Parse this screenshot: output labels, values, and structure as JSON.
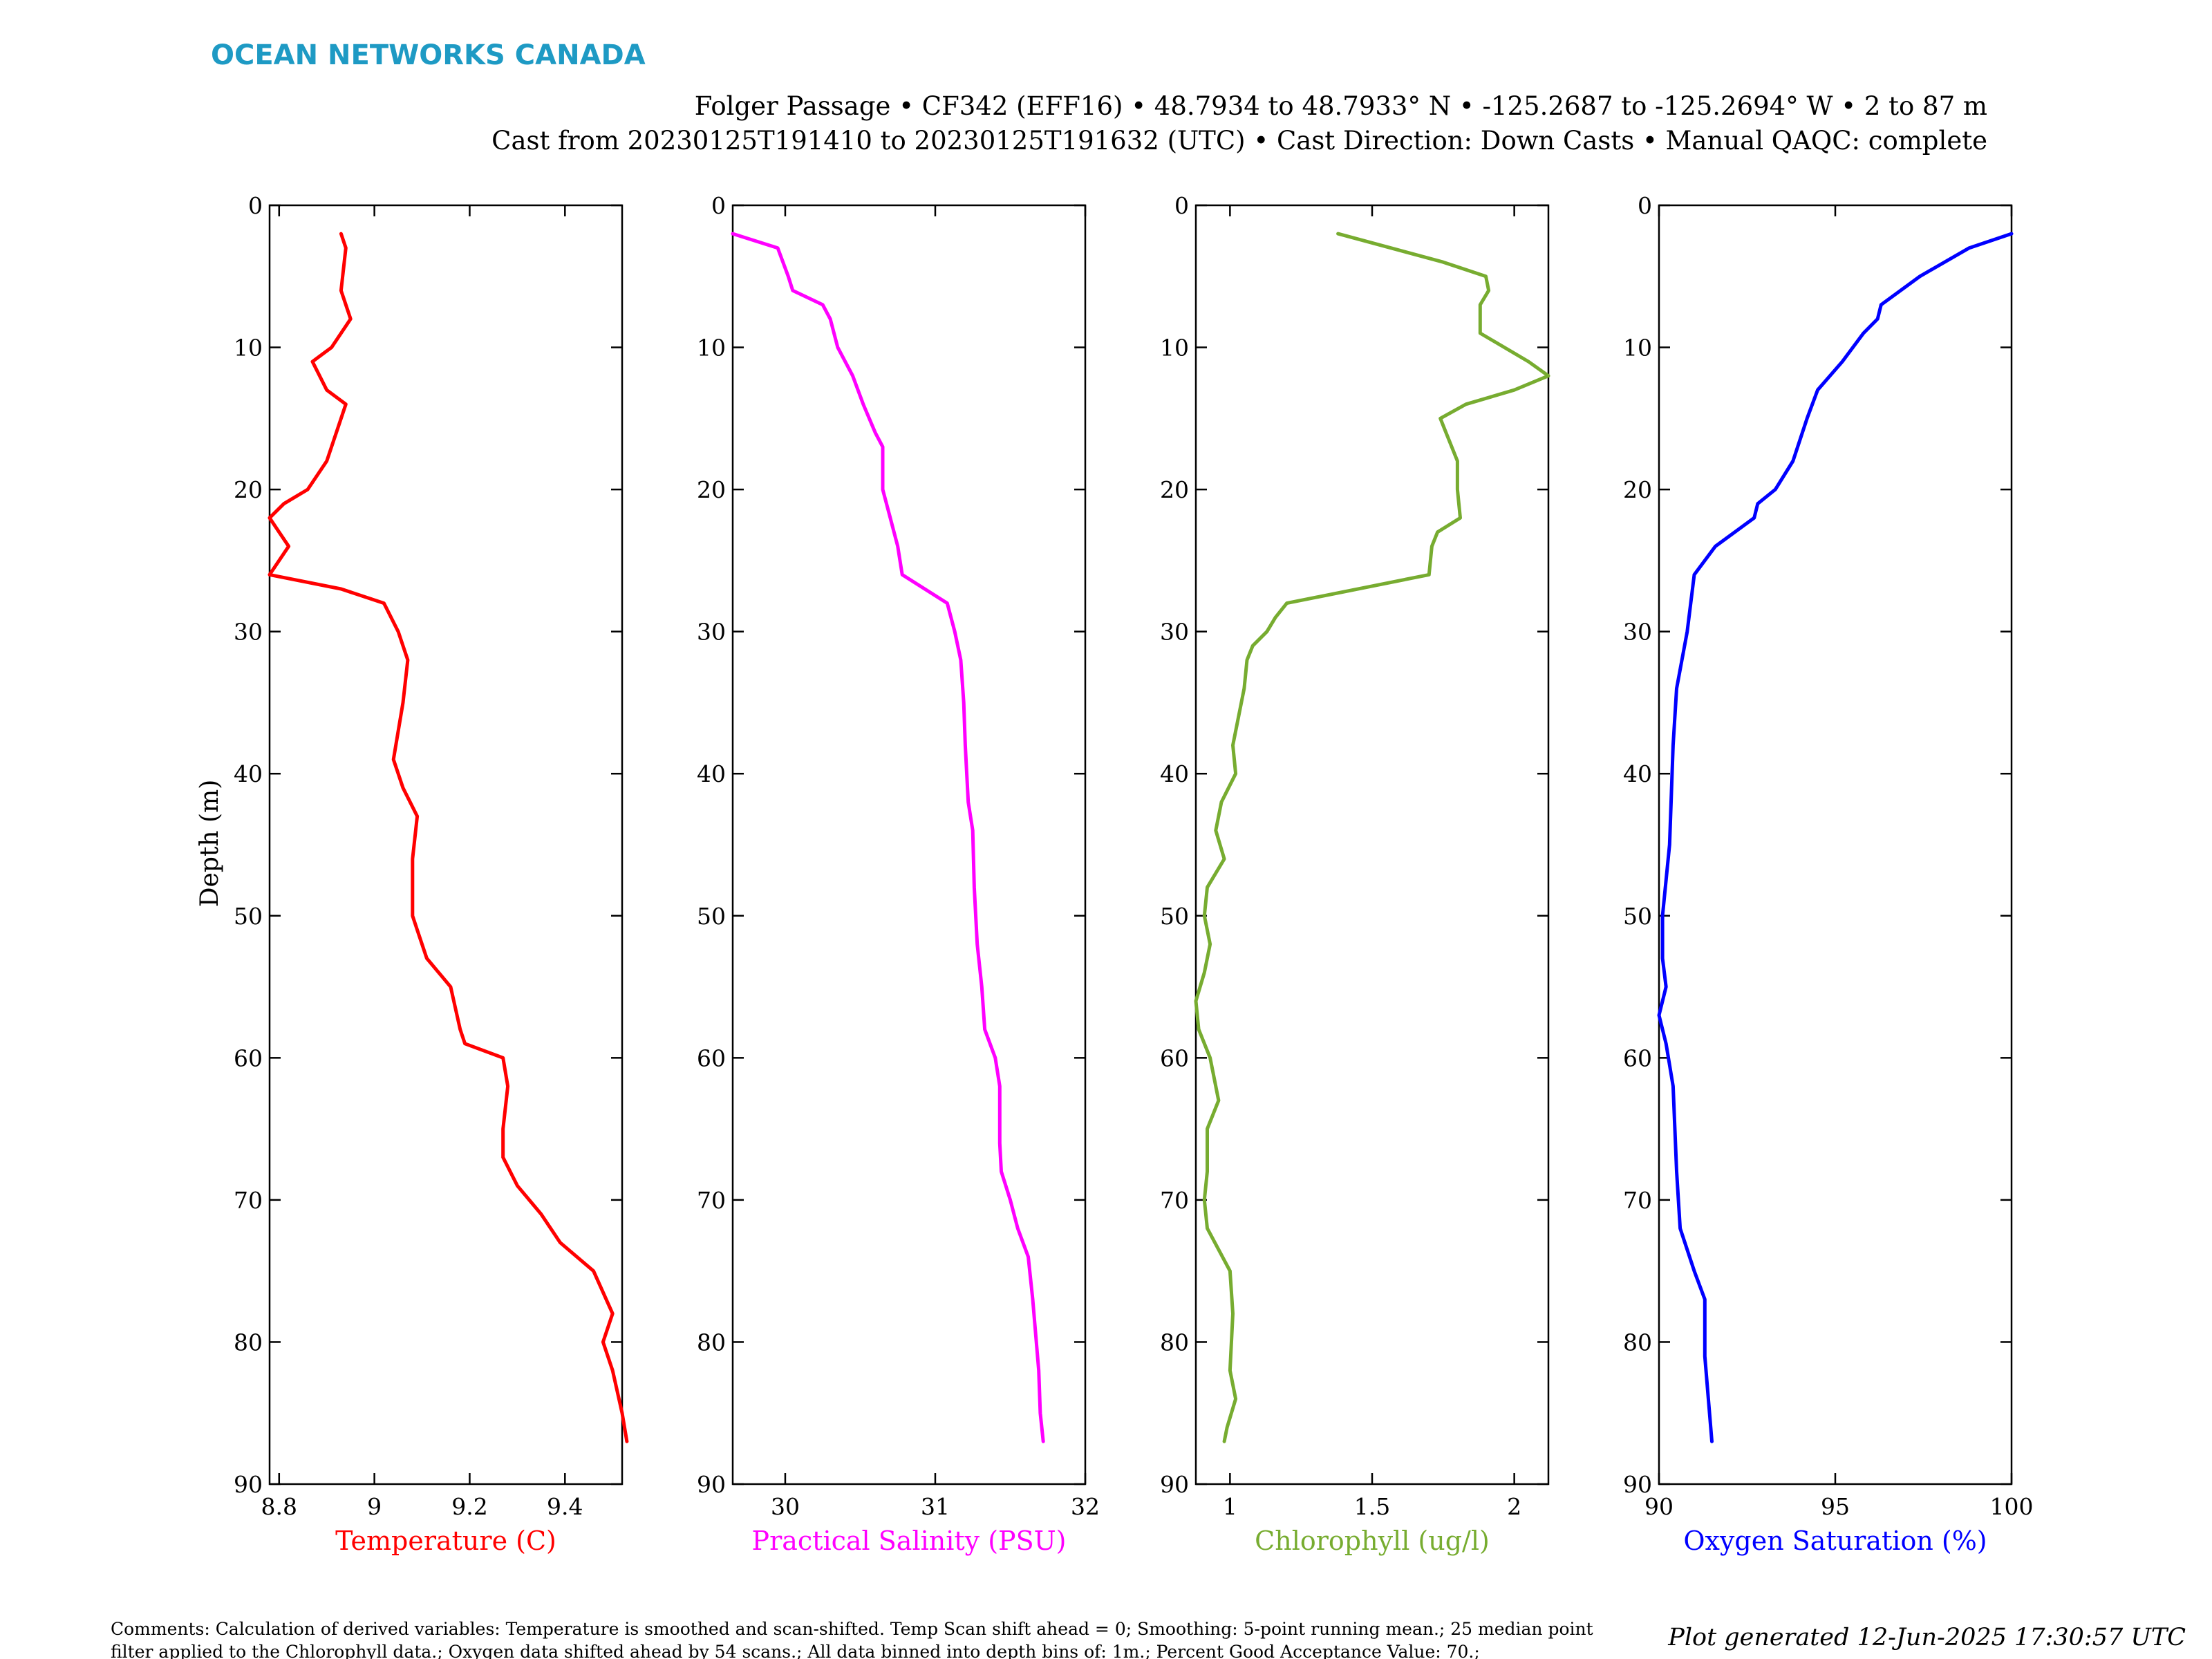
{
  "header": {
    "brand": "OCEAN NETWORKS CANADA",
    "line1": "Folger Passage • CF342 (EFF16) • 48.7934 to 48.7933° N • -125.2687 to -125.2694° W • 2 to 87 m",
    "line2": "Cast from 20230125T191410 to 20230125T191632 (UTC) • Cast Direction: Down Casts • Manual QAQC: complete"
  },
  "colors": {
    "brand": "#1e9ac4",
    "axis": "#000000",
    "text": "#000000"
  },
  "y_axis_label": "Depth (m)",
  "footer": {
    "comment_line1": "Comments: Calculation of derived variables: Temperature is smoothed and scan-shifted. Temp Scan shift ahead = 0; Smoothing: 5-point running mean.; 25 median point",
    "comment_line2": "filter applied to the Chlorophyll data.; Oxygen data shifted ahead by 54 scans.; All data binned into depth bins of: 1m.; Percent Good Acceptance Value: 70.;",
    "generated": "Plot generated 12-Jun-2025 17:30:57 UTC"
  },
  "chart_data": [
    {
      "type": "line",
      "xlabel": "Temperature (C)",
      "color": "#ff0000",
      "xlim": [
        8.78,
        9.52
      ],
      "xticks": [
        8.8,
        9,
        9.2,
        9.4
      ],
      "xtick_labels": [
        "8.8",
        "9",
        "9.2",
        "9.4"
      ],
      "ylim": [
        0,
        90
      ],
      "yticks": [
        0,
        10,
        20,
        30,
        40,
        50,
        60,
        70,
        80,
        90
      ],
      "ytick_labels": [
        "0",
        "10",
        "20",
        "30",
        "40",
        "50",
        "60",
        "70",
        "80",
        "90"
      ],
      "points": [
        [
          8.93,
          2
        ],
        [
          8.94,
          3
        ],
        [
          8.93,
          6
        ],
        [
          8.95,
          8
        ],
        [
          8.91,
          10
        ],
        [
          8.87,
          11
        ],
        [
          8.9,
          13
        ],
        [
          8.94,
          14
        ],
        [
          8.92,
          16
        ],
        [
          8.9,
          18
        ],
        [
          8.86,
          20
        ],
        [
          8.81,
          21
        ],
        [
          8.78,
          22
        ],
        [
          8.8,
          23
        ],
        [
          8.82,
          24
        ],
        [
          8.78,
          26
        ],
        [
          8.93,
          27
        ],
        [
          9.02,
          28
        ],
        [
          9.05,
          30
        ],
        [
          9.07,
          32
        ],
        [
          9.06,
          35
        ],
        [
          9.04,
          39
        ],
        [
          9.06,
          41
        ],
        [
          9.09,
          43
        ],
        [
          9.08,
          46
        ],
        [
          9.08,
          50
        ],
        [
          9.09,
          51
        ],
        [
          9.11,
          53
        ],
        [
          9.16,
          55
        ],
        [
          9.18,
          58
        ],
        [
          9.19,
          59
        ],
        [
          9.27,
          60
        ],
        [
          9.28,
          62
        ],
        [
          9.27,
          65
        ],
        [
          9.27,
          67
        ],
        [
          9.3,
          69
        ],
        [
          9.35,
          71
        ],
        [
          9.39,
          73
        ],
        [
          9.46,
          75
        ],
        [
          9.5,
          78
        ],
        [
          9.48,
          80
        ],
        [
          9.5,
          82
        ],
        [
          9.52,
          85
        ],
        [
          9.53,
          87
        ]
      ]
    },
    {
      "type": "line",
      "xlabel": "Practical Salinity (PSU)",
      "color": "#ff00ff",
      "xlim": [
        29.65,
        32
      ],
      "xticks": [
        30,
        31,
        32
      ],
      "xtick_labels": [
        "30",
        "31",
        "32"
      ],
      "ylim": [
        0,
        90
      ],
      "yticks": [
        0,
        10,
        20,
        30,
        40,
        50,
        60,
        70,
        80,
        90
      ],
      "ytick_labels": [
        "0",
        "10",
        "20",
        "30",
        "40",
        "50",
        "60",
        "70",
        "80",
        "90"
      ],
      "points": [
        [
          29.65,
          2
        ],
        [
          29.95,
          3
        ],
        [
          30.02,
          5
        ],
        [
          30.05,
          6
        ],
        [
          30.25,
          7
        ],
        [
          30.3,
          8
        ],
        [
          30.35,
          10
        ],
        [
          30.45,
          12
        ],
        [
          30.52,
          14
        ],
        [
          30.6,
          16
        ],
        [
          30.65,
          17
        ],
        [
          30.65,
          20
        ],
        [
          30.7,
          22
        ],
        [
          30.75,
          24
        ],
        [
          30.78,
          26
        ],
        [
          31.08,
          28
        ],
        [
          31.13,
          30
        ],
        [
          31.17,
          32
        ],
        [
          31.19,
          35
        ],
        [
          31.2,
          38
        ],
        [
          31.22,
          42
        ],
        [
          31.25,
          44
        ],
        [
          31.26,
          48
        ],
        [
          31.28,
          52
        ],
        [
          31.31,
          55
        ],
        [
          31.33,
          58
        ],
        [
          31.4,
          60
        ],
        [
          31.43,
          62
        ],
        [
          31.43,
          66
        ],
        [
          31.44,
          68
        ],
        [
          31.5,
          70
        ],
        [
          31.55,
          72
        ],
        [
          31.62,
          74
        ],
        [
          31.65,
          77
        ],
        [
          31.69,
          82
        ],
        [
          31.7,
          85
        ],
        [
          31.72,
          87
        ]
      ]
    },
    {
      "type": "line",
      "xlabel": "Chlorophyll (ug/l)",
      "color": "#77ac30",
      "xlim": [
        0.88,
        2.12
      ],
      "xticks": [
        1,
        1.5,
        2
      ],
      "xtick_labels": [
        "1",
        "1.5",
        "2"
      ],
      "ylim": [
        0,
        90
      ],
      "yticks": [
        0,
        10,
        20,
        30,
        40,
        50,
        60,
        70,
        80,
        90
      ],
      "ytick_labels": [
        "0",
        "10",
        "20",
        "30",
        "40",
        "50",
        "60",
        "70",
        "80",
        "90"
      ],
      "points": [
        [
          1.38,
          2
        ],
        [
          1.75,
          4
        ],
        [
          1.9,
          5
        ],
        [
          1.91,
          6
        ],
        [
          1.88,
          7
        ],
        [
          1.88,
          9
        ],
        [
          2.05,
          11
        ],
        [
          2.12,
          12
        ],
        [
          2.0,
          13
        ],
        [
          1.83,
          14
        ],
        [
          1.74,
          15
        ],
        [
          1.76,
          16
        ],
        [
          1.8,
          18
        ],
        [
          1.8,
          20
        ],
        [
          1.81,
          22
        ],
        [
          1.73,
          23
        ],
        [
          1.71,
          24
        ],
        [
          1.7,
          26
        ],
        [
          1.2,
          28
        ],
        [
          1.16,
          29
        ],
        [
          1.13,
          30
        ],
        [
          1.08,
          31
        ],
        [
          1.06,
          32
        ],
        [
          1.05,
          34
        ],
        [
          1.03,
          36
        ],
        [
          1.01,
          38
        ],
        [
          1.02,
          40
        ],
        [
          0.97,
          42
        ],
        [
          0.95,
          44
        ],
        [
          0.98,
          46
        ],
        [
          0.92,
          48
        ],
        [
          0.91,
          50
        ],
        [
          0.93,
          52
        ],
        [
          0.91,
          54
        ],
        [
          0.88,
          56
        ],
        [
          0.89,
          58
        ],
        [
          0.93,
          60
        ],
        [
          0.96,
          63
        ],
        [
          0.92,
          65
        ],
        [
          0.92,
          68
        ],
        [
          0.91,
          70
        ],
        [
          0.92,
          72
        ],
        [
          1.0,
          75
        ],
        [
          1.01,
          78
        ],
        [
          1.0,
          82
        ],
        [
          1.02,
          84
        ],
        [
          0.99,
          86
        ],
        [
          0.98,
          87
        ]
      ]
    },
    {
      "type": "line",
      "xlabel": "Oxygen Saturation (%)",
      "color": "#0000ff",
      "xlim": [
        90,
        100
      ],
      "xticks": [
        90,
        95,
        100
      ],
      "xtick_labels": [
        "90",
        "95",
        "100"
      ],
      "ylim": [
        0,
        90
      ],
      "yticks": [
        0,
        10,
        20,
        30,
        40,
        50,
        60,
        70,
        80,
        90
      ],
      "ytick_labels": [
        "0",
        "10",
        "20",
        "30",
        "40",
        "50",
        "60",
        "70",
        "80",
        "90"
      ],
      "points": [
        [
          100.0,
          2
        ],
        [
          98.8,
          3
        ],
        [
          97.4,
          5
        ],
        [
          96.3,
          7
        ],
        [
          96.2,
          8
        ],
        [
          95.8,
          9
        ],
        [
          95.2,
          11
        ],
        [
          94.5,
          13
        ],
        [
          94.2,
          15
        ],
        [
          93.8,
          18
        ],
        [
          93.3,
          20
        ],
        [
          92.8,
          21
        ],
        [
          92.7,
          22
        ],
        [
          91.6,
          24
        ],
        [
          91.0,
          26
        ],
        [
          90.9,
          28
        ],
        [
          90.8,
          30
        ],
        [
          90.5,
          34
        ],
        [
          90.4,
          38
        ],
        [
          90.3,
          45
        ],
        [
          90.1,
          50
        ],
        [
          90.1,
          53
        ],
        [
          90.2,
          55
        ],
        [
          90.0,
          57
        ],
        [
          90.2,
          59
        ],
        [
          90.4,
          62
        ],
        [
          90.5,
          68
        ],
        [
          90.6,
          72
        ],
        [
          91.0,
          75
        ],
        [
          91.3,
          77
        ],
        [
          91.3,
          81
        ],
        [
          91.4,
          84
        ],
        [
          91.5,
          87
        ]
      ]
    }
  ]
}
